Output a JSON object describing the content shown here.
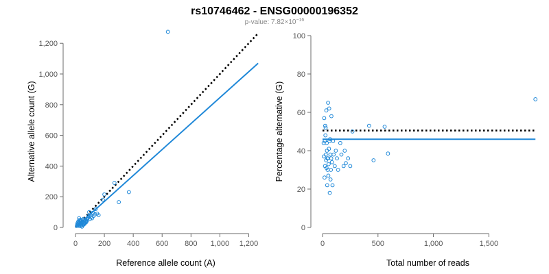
{
  "header": {
    "title": "rs10746462 - ENSG00000196352",
    "pvalue_prefix": "p-value: 7.82×10",
    "pvalue_exp": "−16"
  },
  "colors": {
    "points": "#1f88d8",
    "fit": "#1f88d8",
    "reference": "#000000"
  },
  "chart_data": [
    {
      "type": "scatter",
      "xlabel": "Reference allele count (A)",
      "ylabel": "Alternative allele count (G)",
      "xlim": [
        0,
        1250
      ],
      "ylim": [
        0,
        1250
      ],
      "xticks": [
        0,
        200,
        400,
        600,
        800,
        1000,
        1200
      ],
      "yticks": [
        0,
        200,
        400,
        600,
        800,
        1000,
        1200
      ],
      "xtick_labels": [
        "0",
        "200",
        "400",
        "600",
        "800",
        "1,000",
        "1,200"
      ],
      "ytick_labels": [
        "0",
        "200",
        "400",
        "600",
        "800",
        "1,000",
        "1,200"
      ],
      "points": [
        [
          640,
          1275
        ],
        [
          270,
          290
        ],
        [
          300,
          165
        ],
        [
          370,
          230
        ],
        [
          200,
          215
        ],
        [
          190,
          180
        ],
        [
          140,
          120
        ],
        [
          150,
          90
        ],
        [
          160,
          80
        ],
        [
          120,
          95
        ],
        [
          110,
          70
        ],
        [
          100,
          55
        ],
        [
          95,
          100
        ],
        [
          90,
          75
        ],
        [
          80,
          45
        ],
        [
          85,
          60
        ],
        [
          70,
          50
        ],
        [
          75,
          35
        ],
        [
          60,
          40
        ],
        [
          65,
          25
        ],
        [
          55,
          30
        ],
        [
          50,
          20
        ],
        [
          45,
          35
        ],
        [
          40,
          15
        ],
        [
          35,
          45
        ],
        [
          30,
          30
        ],
        [
          28,
          20
        ],
        [
          25,
          10
        ],
        [
          22,
          35
        ],
        [
          20,
          25
        ],
        [
          18,
          15
        ],
        [
          15,
          30
        ],
        [
          12,
          20
        ],
        [
          10,
          10
        ],
        [
          38,
          25
        ],
        [
          42,
          45
        ],
        [
          48,
          50
        ],
        [
          52,
          15
        ],
        [
          58,
          20
        ],
        [
          62,
          30
        ],
        [
          68,
          45
        ],
        [
          72,
          40
        ],
        [
          78,
          55
        ],
        [
          88,
          65
        ],
        [
          105,
          80
        ],
        [
          115,
          60
        ],
        [
          125,
          75
        ],
        [
          135,
          85
        ],
        [
          30,
          50
        ],
        [
          20,
          40
        ],
        [
          25,
          60
        ],
        [
          35,
          10
        ],
        [
          45,
          5
        ],
        [
          55,
          55
        ]
      ],
      "lines": [
        {
          "kind": "reference",
          "style": "dotted",
          "from": [
            0,
            0
          ],
          "to": [
            1265,
            1265
          ]
        },
        {
          "kind": "fit",
          "style": "solid",
          "from": [
            0,
            0
          ],
          "to": [
            1265,
            1070
          ]
        }
      ]
    },
    {
      "type": "scatter",
      "xlabel": "Total number of reads",
      "ylabel": "Percentage alternative (G)",
      "xlim": [
        0,
        1900
      ],
      "ylim": [
        0,
        100
      ],
      "xticks": [
        0,
        500,
        1000,
        1500
      ],
      "yticks": [
        0,
        20,
        40,
        60,
        80,
        100
      ],
      "xtick_labels": [
        "0",
        "500",
        "1,000",
        "1,500"
      ],
      "ytick_labels": [
        "0",
        "20",
        "40",
        "60",
        "80",
        "100"
      ],
      "points": [
        [
          1920,
          66.8
        ],
        [
          590,
          38.5
        ],
        [
          560,
          52.5
        ],
        [
          460,
          35
        ],
        [
          420,
          53
        ],
        [
          270,
          50
        ],
        [
          250,
          32
        ],
        [
          230,
          36
        ],
        [
          210,
          33.5
        ],
        [
          200,
          40
        ],
        [
          190,
          32
        ],
        [
          170,
          38
        ],
        [
          160,
          44
        ],
        [
          140,
          30
        ],
        [
          130,
          36
        ],
        [
          120,
          40
        ],
        [
          110,
          32
        ],
        [
          100,
          38
        ],
        [
          95,
          45
        ],
        [
          90,
          22
        ],
        [
          85,
          34
        ],
        [
          80,
          58
        ],
        [
          78,
          36
        ],
        [
          75,
          30
        ],
        [
          72,
          25
        ],
        [
          70,
          38
        ],
        [
          68,
          46
        ],
        [
          65,
          18
        ],
        [
          62,
          45
        ],
        [
          60,
          62
        ],
        [
          58,
          41
        ],
        [
          55,
          33
        ],
        [
          52,
          27
        ],
        [
          50,
          65
        ],
        [
          48,
          36
        ],
        [
          46,
          30
        ],
        [
          44,
          36
        ],
        [
          42,
          22
        ],
        [
          40,
          40
        ],
        [
          38,
          44
        ],
        [
          36,
          31
        ],
        [
          34,
          61
        ],
        [
          32,
          35
        ],
        [
          30,
          38
        ],
        [
          28,
          52
        ],
        [
          26,
          48
        ],
        [
          24,
          53
        ],
        [
          22,
          32
        ],
        [
          20,
          45
        ],
        [
          18,
          26
        ],
        [
          15,
          57
        ],
        [
          12,
          37
        ],
        [
          10,
          44
        ]
      ],
      "lines": [
        {
          "kind": "reference",
          "style": "dotted",
          "from": [
            0,
            50.5
          ],
          "to": [
            1920,
            50.5
          ]
        },
        {
          "kind": "fit",
          "style": "solid",
          "from": [
            0,
            46
          ],
          "to": [
            1920,
            46
          ]
        }
      ]
    }
  ]
}
